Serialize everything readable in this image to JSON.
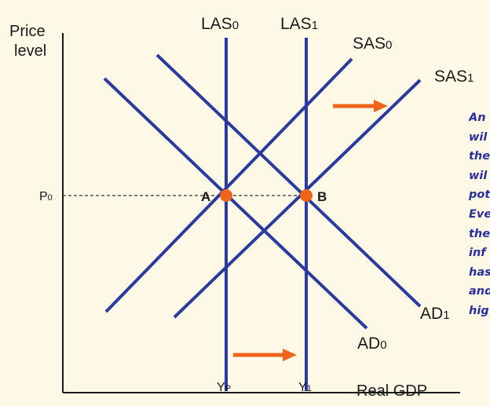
{
  "axes": {
    "y_title_line1": "Price",
    "y_title_line2": "level",
    "x_title": "Real GDP"
  },
  "curves": {
    "las0": {
      "base": "LAS",
      "sub": "0"
    },
    "las1": {
      "base": "LAS",
      "sub": "1"
    },
    "sas0": {
      "base": "SAS",
      "sub": "0"
    },
    "sas1": {
      "base": "SAS",
      "sub": "1"
    },
    "ad0": {
      "base": "AD",
      "sub": "0"
    },
    "ad1": {
      "base": "AD",
      "sub": "1"
    }
  },
  "ticks": {
    "p0": {
      "base": "P",
      "sub": "0"
    },
    "yp": {
      "base": "Y",
      "sub": "P"
    },
    "y1": {
      "base": "Y",
      "sub": "1"
    }
  },
  "points": {
    "a": "A",
    "b": "B"
  },
  "note_lines": [
    "An",
    "wil",
    "the",
    "wil",
    "pot",
    "Eve",
    "the",
    "inf",
    "has",
    "and",
    "hig"
  ],
  "colors": {
    "background": "#fdf9e6",
    "curve": "#2b3a9c",
    "point": "#ef6418",
    "arrow": "#ef6418",
    "note": "#2a2f9a",
    "axis": "#1a1a1a"
  }
}
